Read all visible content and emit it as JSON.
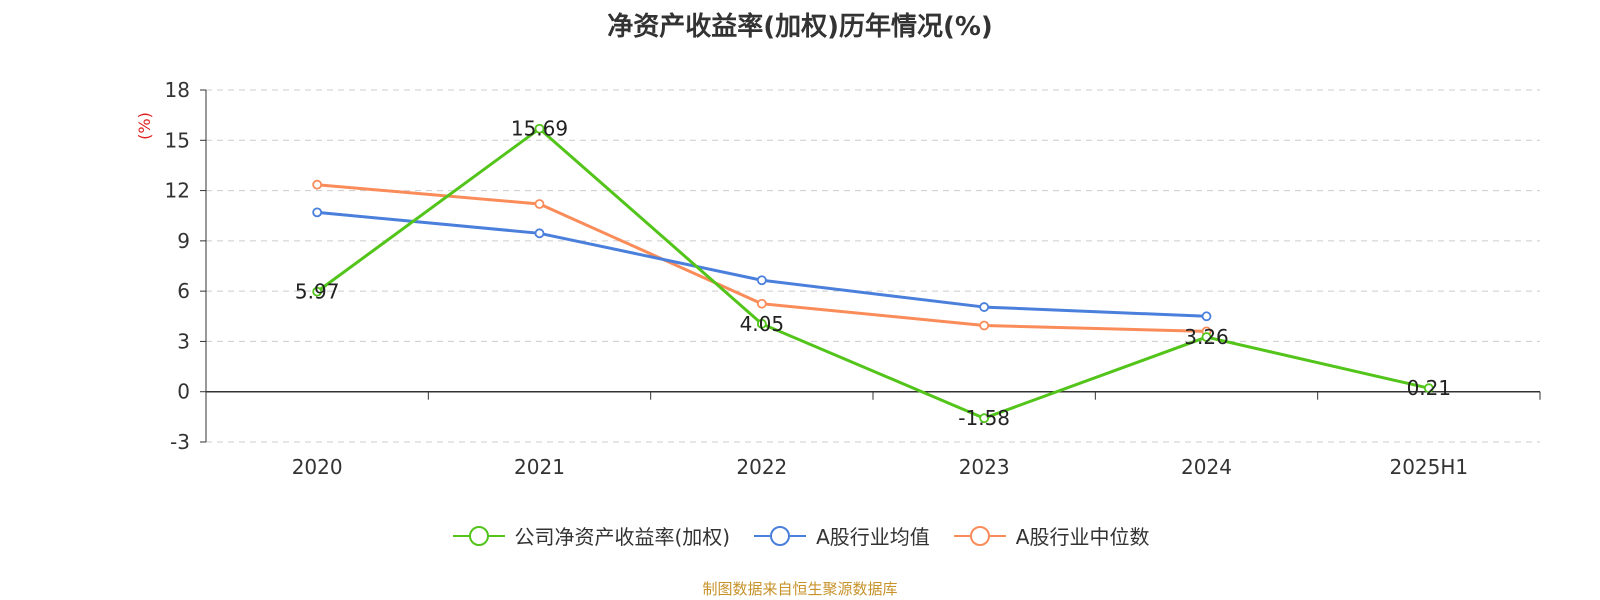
{
  "chart_data": {
    "type": "line",
    "title": "净资产收益率(加权)历年情况(%)",
    "ylabel": "(%)",
    "xlabel": "",
    "categories": [
      "2020",
      "2021",
      "2022",
      "2023",
      "2024",
      "2025H1"
    ],
    "ylim": [
      -3,
      18
    ],
    "yticks": [
      -3,
      0,
      3,
      6,
      9,
      12,
      15,
      18
    ],
    "grid": true,
    "legend_position": "bottom-center",
    "series": [
      {
        "name": "公司净资产收益率(加权)",
        "color": "#52c41a",
        "values": [
          5.97,
          15.69,
          4.05,
          -1.58,
          3.26,
          0.21
        ],
        "labels": [
          "5.97",
          "15.69",
          "4.05",
          "-1.58",
          "3.26",
          "0.21"
        ]
      },
      {
        "name": "A股行业均值",
        "color": "#4a7fdc",
        "values": [
          10.7,
          9.45,
          6.65,
          5.05,
          4.5,
          null
        ]
      },
      {
        "name": "A股行业中位数",
        "color": "#fa8c5a",
        "values": [
          12.35,
          11.2,
          5.25,
          3.95,
          3.6,
          null
        ]
      }
    ],
    "source": "制图数据来自恒生聚源数据库"
  }
}
